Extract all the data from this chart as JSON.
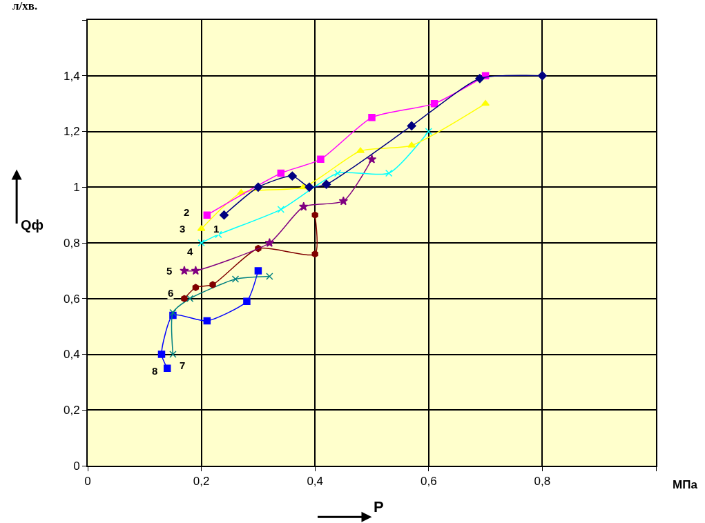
{
  "chart_data": {
    "type": "line",
    "xlabel": "P",
    "ylabel": "Qф",
    "annotations": [
      "л/хв.",
      "МПа"
    ],
    "xlim": [
      0,
      1.0
    ],
    "xticks": [
      0,
      {
        "value": 0.2,
        "label": "0,2"
      },
      {
        "value": 0.4,
        "label": "0,4"
      },
      {
        "value": 0.6,
        "label": "0,6"
      },
      {
        "value": 0.8,
        "label": "0,8"
      },
      {
        "value": 1.0,
        "label": null
      }
    ],
    "ylim": [
      0,
      1.6
    ],
    "yticks": [
      0,
      {
        "value": 0.2,
        "label": "0,2"
      },
      {
        "value": 0.4,
        "label": "0,4"
      },
      {
        "value": 0.6,
        "label": "0,6"
      },
      {
        "value": 0.8,
        "label": "0,8"
      },
      1,
      {
        "value": 1.2,
        "label": "1,2"
      },
      {
        "value": 1.4,
        "label": "1,4"
      },
      {
        "value": 1.6,
        "label": null
      }
    ],
    "grid": true,
    "legend": false,
    "series": [
      {
        "name": "1",
        "color": "#000080",
        "marker": "diamond",
        "x": [
          0.24,
          0.3,
          0.36,
          0.39,
          0.42,
          0.57,
          0.69,
          0.8
        ],
        "values": [
          0.9,
          1.0,
          1.04,
          1.0,
          1.01,
          1.22,
          1.39,
          1.4
        ]
      },
      {
        "name": "2",
        "color": "#ff00ff",
        "marker": "square",
        "x": [
          0.21,
          0.34,
          0.41,
          0.5,
          0.61,
          0.7
        ],
        "values": [
          0.9,
          1.05,
          1.1,
          1.25,
          1.3,
          1.4
        ]
      },
      {
        "name": "3",
        "color": "#ffff00",
        "marker": "triangle",
        "x": [
          0.2,
          0.27,
          0.38,
          0.48,
          0.57,
          0.7
        ],
        "values": [
          0.85,
          0.98,
          1.0,
          1.13,
          1.15,
          1.3
        ]
      },
      {
        "name": "4",
        "color": "#00ffff",
        "marker": "cross",
        "x": [
          0.2,
          0.23,
          0.34,
          0.44,
          0.53,
          0.6
        ],
        "values": [
          0.8,
          0.83,
          0.92,
          1.05,
          1.05,
          1.2
        ]
      },
      {
        "name": "5",
        "color": "#800080",
        "marker": "star",
        "x": [
          0.17,
          0.19,
          0.32,
          0.38,
          0.45,
          0.5
        ],
        "values": [
          0.7,
          0.7,
          0.8,
          0.93,
          0.95,
          1.1
        ]
      },
      {
        "name": "6",
        "color": "#800000",
        "marker": "circle",
        "x": [
          0.17,
          0.19,
          0.22,
          0.3,
          0.4,
          0.4
        ],
        "values": [
          0.6,
          0.64,
          0.65,
          0.78,
          0.76,
          0.9
        ]
      },
      {
        "name": "7",
        "color": "#008080",
        "marker": "cross",
        "x": [
          0.15,
          0.15,
          0.18,
          0.26,
          0.32
        ],
        "values": [
          0.4,
          0.55,
          0.6,
          0.67,
          0.68
        ]
      },
      {
        "name": "8",
        "color": "#0000ff",
        "marker": "square",
        "x": [
          0.14,
          0.13,
          0.15,
          0.21,
          0.28,
          0.3
        ],
        "values": [
          0.35,
          0.4,
          0.54,
          0.52,
          0.59,
          0.7
        ]
      }
    ]
  }
}
